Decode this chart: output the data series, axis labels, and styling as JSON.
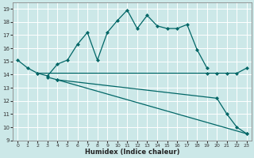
{
  "xlabel": "Humidex (Indice chaleur)",
  "background_color": "#cce8e8",
  "grid_color": "#ffffff",
  "line_color": "#006666",
  "xlim": [
    -0.5,
    23.5
  ],
  "ylim": [
    9,
    19.5
  ],
  "yticks": [
    9,
    10,
    11,
    12,
    13,
    14,
    15,
    16,
    17,
    18,
    19
  ],
  "xticks": [
    0,
    1,
    2,
    3,
    4,
    5,
    6,
    7,
    8,
    9,
    10,
    11,
    12,
    13,
    14,
    15,
    16,
    17,
    18,
    19,
    20,
    21,
    22,
    23
  ],
  "line1_x": [
    0,
    1,
    2,
    3,
    4,
    5,
    6,
    7,
    8,
    9,
    10,
    11,
    12,
    13,
    14,
    15,
    16,
    17,
    18,
    19
  ],
  "line1_y": [
    15.1,
    14.5,
    14.1,
    13.9,
    14.8,
    15.1,
    16.3,
    17.2,
    15.1,
    17.2,
    18.1,
    18.9,
    17.5,
    18.5,
    17.7,
    17.5,
    17.5,
    17.8,
    15.9,
    14.5
  ],
  "line2_x": [
    2,
    19,
    20,
    21,
    22,
    23
  ],
  "line2_y": [
    14.1,
    14.1,
    14.1,
    14.1,
    14.1,
    14.5
  ],
  "line3_x": [
    3,
    4,
    20,
    21,
    22,
    23
  ],
  "line3_y": [
    13.8,
    13.6,
    12.2,
    11.0,
    10.0,
    9.5
  ],
  "line4_x": [
    4,
    23
  ],
  "line4_y": [
    13.6,
    9.5
  ]
}
